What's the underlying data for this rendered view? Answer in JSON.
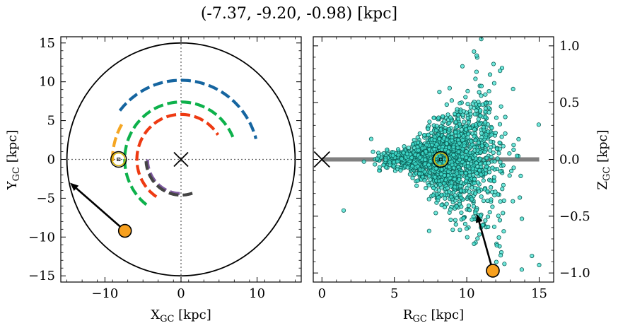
{
  "chart_data": {
    "title": "(-7.37, -9.20, -0.98) [kpc]",
    "panels": [
      {
        "type": "scatter",
        "xlabel": "X",
        "xlabel_sub": "GC",
        "xlabel_unit": " [kpc]",
        "ylabel": "Y",
        "ylabel_sub": "GC",
        "ylabel_unit": " [kpc]",
        "xlim": [
          -15.8,
          15.8
        ],
        "ylim": [
          -15.8,
          15.8
        ],
        "xticks": [
          -10,
          0,
          10
        ],
        "yticks": [
          -15,
          -10,
          -5,
          0,
          5,
          10,
          15
        ],
        "circle_radius": 15,
        "galactic_center": [
          0,
          0
        ],
        "sun": [
          -8.2,
          0
        ],
        "target": [
          -7.37,
          -9.2
        ],
        "arrow_end": [
          -14.6,
          -3.0
        ],
        "arms": [
          {
            "color": "#1565a0",
            "radius": 10.2,
            "start_deg": 142,
            "end_deg": 15
          },
          {
            "color": "#0db14b",
            "radius": 7.4,
            "start_deg": 232,
            "end_deg": 23
          },
          {
            "color": "#f5a623",
            "radius": 9.0,
            "start_deg": 150,
            "end_deg": 184
          },
          {
            "color": "#ee3a12",
            "radius": 5.8,
            "start_deg": 236,
            "end_deg": 33
          },
          {
            "color": "#7e5aa0",
            "radius": 4.4,
            "start_deg": 268,
            "end_deg": 180
          },
          {
            "color": "#444444",
            "radius": 4.6,
            "start_deg": 289,
            "end_deg": 183
          }
        ]
      },
      {
        "type": "scatter",
        "xlabel": "R",
        "xlabel_sub": "GC",
        "xlabel_unit": " [kpc]",
        "ylabel": "Z",
        "ylabel_sub": "GC",
        "ylabel_unit": " [kpc]",
        "xlim": [
          -0.6,
          16.0
        ],
        "ylim": [
          -1.08,
          1.08
        ],
        "xticks": [
          0,
          5,
          10,
          15
        ],
        "yticks": [
          -1.0,
          -0.5,
          0.0,
          0.5,
          1.0
        ],
        "ytick_labels": [
          "−1.0",
          "−0.5",
          "0.0",
          "0.5",
          "1.0"
        ],
        "disk_line": {
          "x": [
            0,
            15
          ],
          "y": 0
        },
        "galactic_center": [
          0,
          0
        ],
        "sun": [
          8.2,
          0
        ],
        "target": [
          11.8,
          -0.98
        ],
        "arrow_end": [
          10.7,
          -0.48
        ],
        "stars": {
          "count": 1800,
          "r_center": 8.5,
          "r_spread": 1.9,
          "z_spread_base": 0.04,
          "z_spread_growth": 0.055,
          "color": "#40e0d0"
        },
        "outliers": [
          [
            1.5,
            -0.45
          ],
          [
            3.4,
            0.18
          ],
          [
            2.9,
            -0.02
          ],
          [
            11.0,
            1.06
          ],
          [
            9.7,
            0.82
          ],
          [
            10.5,
            0.95
          ],
          [
            12.3,
            0.78
          ],
          [
            14.5,
            -0.85
          ],
          [
            15.0,
            -0.93
          ],
          [
            13.8,
            -0.97
          ],
          [
            12.6,
            -0.92
          ],
          [
            7.4,
            -0.63
          ],
          [
            13.2,
            0.62
          ]
        ]
      }
    ]
  }
}
